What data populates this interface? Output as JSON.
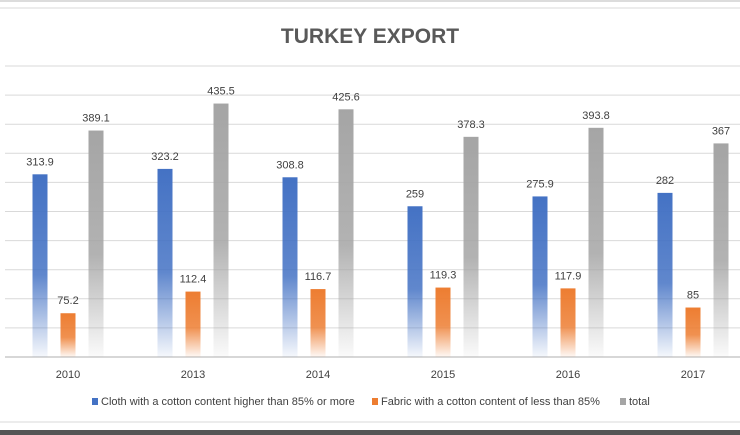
{
  "chart_data": {
    "type": "bar",
    "title": "TURKEY EXPORT",
    "xlabel": "",
    "ylabel": "",
    "ylim": [
      0,
      500
    ],
    "grid": true,
    "legend_position": "bottom",
    "categories": [
      "2010",
      "2013",
      "2014",
      "2015",
      "2016",
      "2017"
    ],
    "series": [
      {
        "name": "Cloth with a cotton content higher than 85% or more",
        "color": "#4472C4",
        "values": [
          313.9,
          323.2,
          308.8,
          259,
          275.9,
          282
        ]
      },
      {
        "name": "Fabric with a cotton content of less than 85%",
        "color": "#ED7D31",
        "values": [
          75.2,
          112.4,
          116.7,
          119.3,
          117.9,
          85
        ]
      },
      {
        "name": "total",
        "color": "#A5A5A5",
        "values": [
          389.1,
          435.5,
          425.6,
          378.3,
          393.8,
          367
        ]
      }
    ]
  }
}
